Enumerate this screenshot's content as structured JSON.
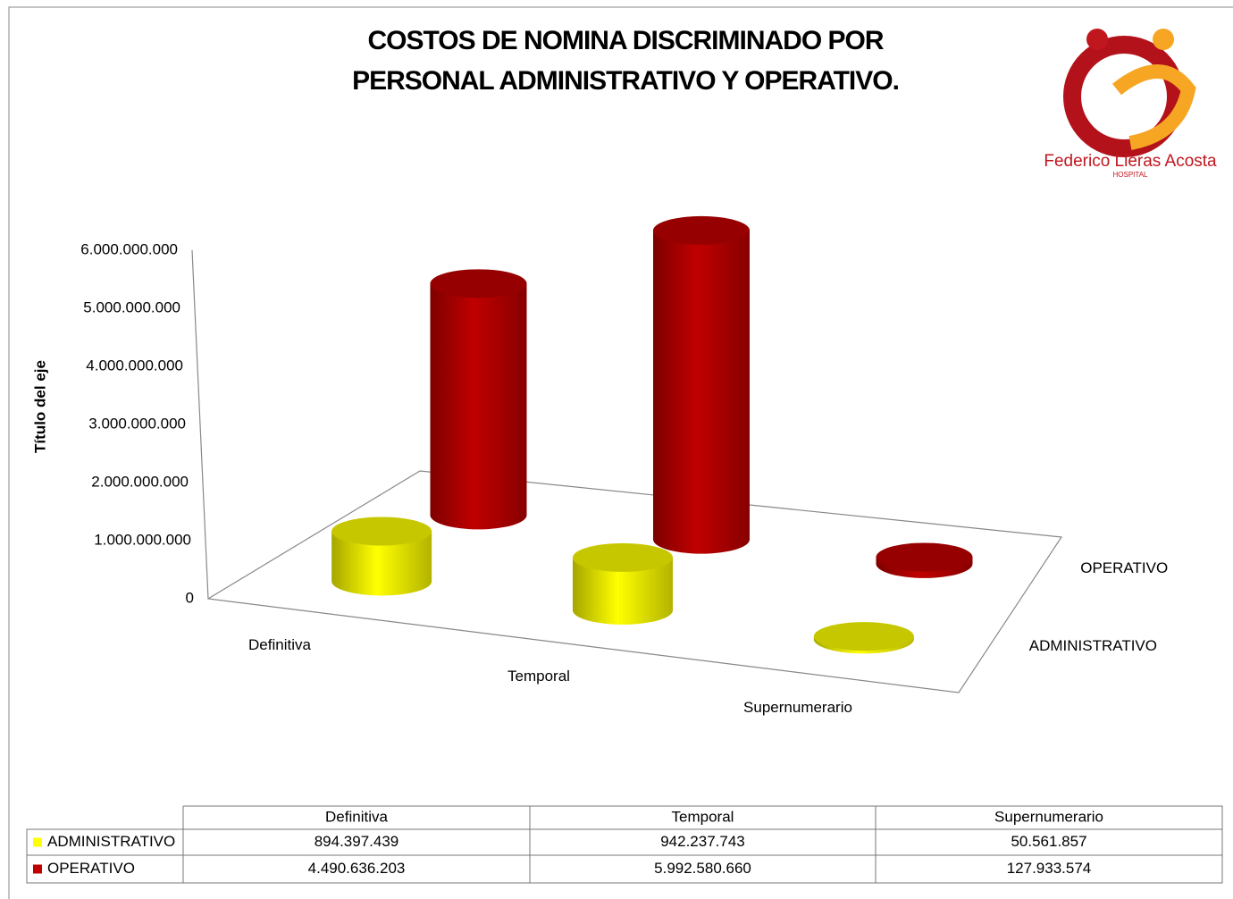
{
  "chart_data": {
    "type": "bar",
    "title": [
      "COSTOS DE NOMINA DISCRIMINADO POR",
      "PERSONAL ADMINISTRATIVO Y OPERATIVO."
    ],
    "axis_title": "Título del eje",
    "categories": [
      "Definitiva",
      "Temporal",
      "Supernumerario"
    ],
    "series": [
      {
        "name": "ADMINISTRATIVO",
        "color": "#ffff00",
        "values": [
          894397439,
          942237743,
          50561857
        ],
        "value_labels": [
          "894.397.439",
          "942.237.743",
          "50.561.857"
        ]
      },
      {
        "name": "OPERATIVO",
        "color": "#c00000",
        "values": [
          4490636203,
          5992580660,
          127933574
        ],
        "value_labels": [
          "4.490.636.203",
          "5.992.580.660",
          "127.933.574"
        ]
      }
    ],
    "ylim": [
      0,
      6000000000
    ],
    "yticks": [
      0,
      {
        "value": 1000000000,
        "label": "1.000.000.000"
      },
      {
        "value": 2000000000,
        "label": "2.000.000.000"
      },
      {
        "value": 3000000000,
        "label": "3.000.000.000"
      },
      {
        "value": 4000000000,
        "label": "4.000.000.000"
      },
      {
        "value": 5000000000,
        "label": "5.000.000.000"
      },
      {
        "value": 6000000000,
        "label": "6.000.000.000"
      }
    ]
  },
  "logo": {
    "name": "Federico Lleras Acosta",
    "subtitle": "HOSPITAL"
  }
}
